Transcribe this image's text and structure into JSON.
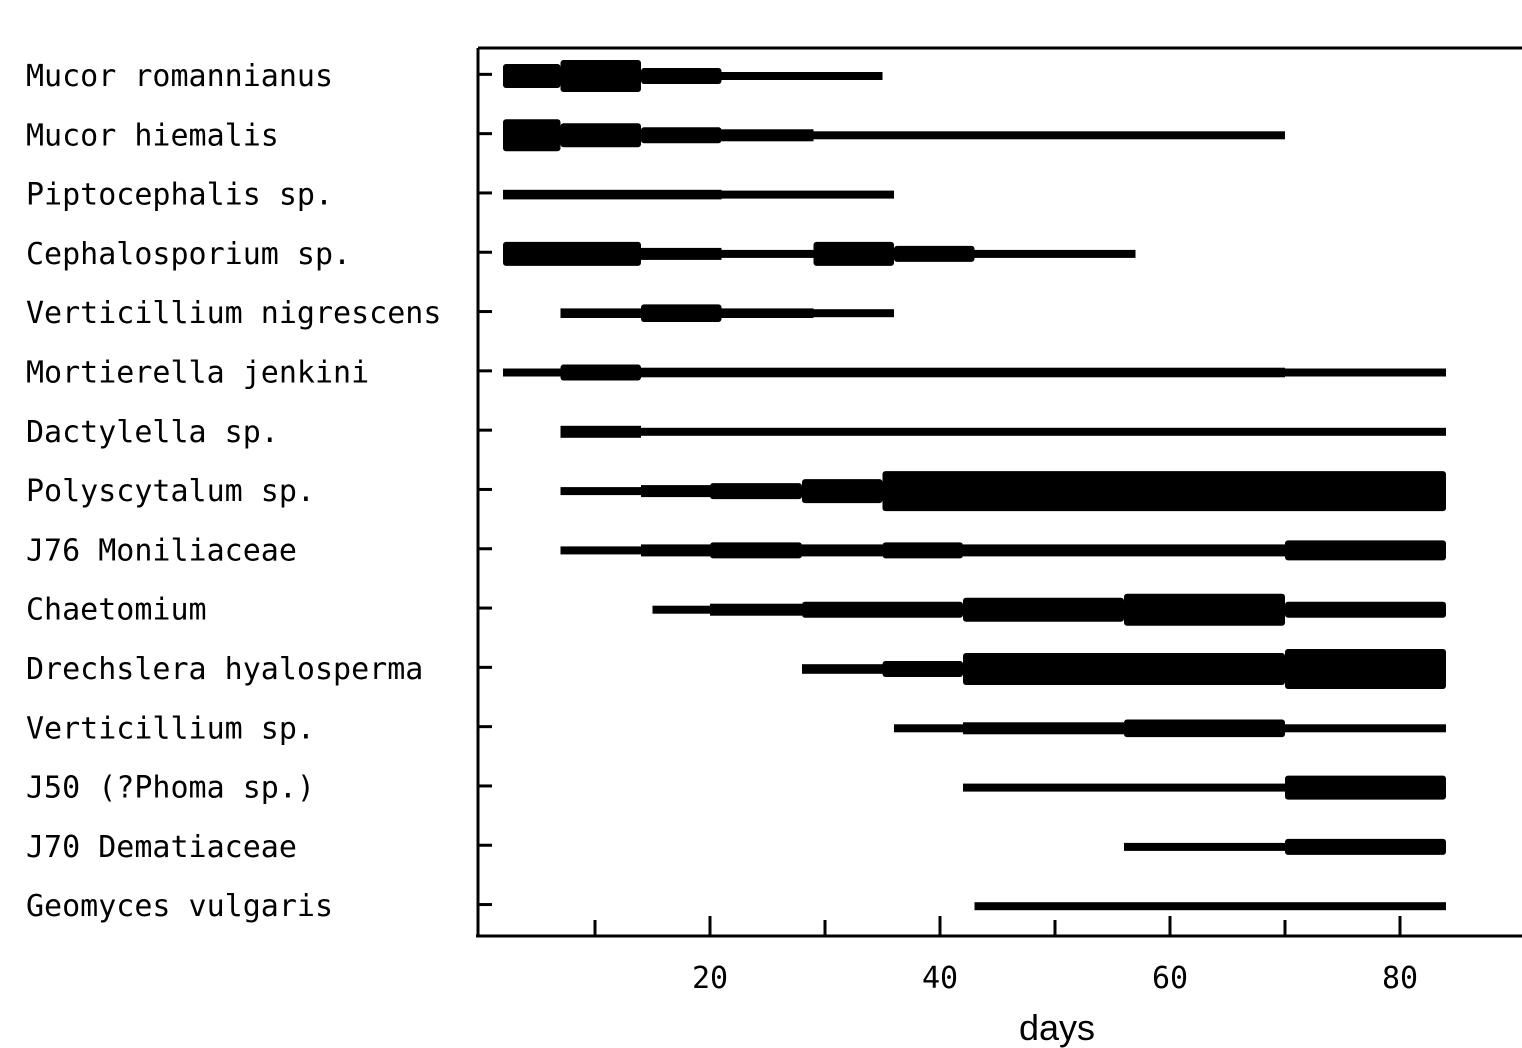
{
  "chart_data": {
    "type": "bar",
    "subtype": "kite-diagram",
    "title": "",
    "xlabel": "days",
    "ylabel": "",
    "xlim": [
      0,
      90
    ],
    "x_ticks": [
      20,
      40,
      60,
      80
    ],
    "x_minor_ticks": [
      10,
      30,
      50,
      70
    ],
    "width_scale": "relative abundance, 1 = thin line, 5 = thickest band",
    "species": [
      {
        "name": "Mucor romannianus",
        "segments": [
          [
            2,
            7,
            3
          ],
          [
            7,
            14,
            4
          ],
          [
            14,
            21,
            2
          ],
          [
            21,
            35,
            1
          ]
        ]
      },
      {
        "name": "Mucor hiemalis",
        "segments": [
          [
            2,
            7,
            4
          ],
          [
            7,
            14,
            3
          ],
          [
            14,
            21,
            2
          ],
          [
            21,
            29,
            1.5
          ],
          [
            29,
            70,
            1
          ]
        ]
      },
      {
        "name": "Piptocephalis sp.",
        "segments": [
          [
            2,
            21,
            1.2
          ],
          [
            21,
            36,
            1
          ]
        ]
      },
      {
        "name": "Cephalosporium sp.",
        "segments": [
          [
            2,
            14,
            3
          ],
          [
            14,
            21,
            1.5
          ],
          [
            21,
            29,
            1
          ],
          [
            29,
            36,
            3
          ],
          [
            36,
            43,
            2
          ],
          [
            43,
            57,
            1
          ]
        ]
      },
      {
        "name": "Verticillium nigrescens",
        "segments": [
          [
            7,
            14,
            1.2
          ],
          [
            14,
            21,
            2.2
          ],
          [
            21,
            29,
            1.2
          ],
          [
            29,
            36,
            1
          ]
        ]
      },
      {
        "name": "Mortierella jenkini",
        "segments": [
          [
            2,
            7,
            1
          ],
          [
            7,
            14,
            2
          ],
          [
            14,
            70,
            1.2
          ],
          [
            70,
            84,
            1
          ]
        ]
      },
      {
        "name": "Dactylella sp.",
        "segments": [
          [
            7,
            14,
            1.5
          ],
          [
            14,
            21,
            1
          ],
          [
            21,
            84,
            1
          ]
        ]
      },
      {
        "name": "Polyscytalum sp.",
        "segments": [
          [
            7,
            14,
            1
          ],
          [
            14,
            20,
            1.5
          ],
          [
            20,
            28,
            2
          ],
          [
            28,
            35,
            3
          ],
          [
            35,
            84,
            5
          ]
        ]
      },
      {
        "name": "J76 Moniliaceae",
        "segments": [
          [
            7,
            14,
            1
          ],
          [
            14,
            20,
            1.5
          ],
          [
            20,
            28,
            2
          ],
          [
            28,
            35,
            1.5
          ],
          [
            35,
            42,
            2
          ],
          [
            42,
            70,
            1.5
          ],
          [
            70,
            84,
            2.5
          ]
        ]
      },
      {
        "name": "Chaetomium",
        "segments": [
          [
            15,
            20,
            1
          ],
          [
            20,
            28,
            1.5
          ],
          [
            28,
            42,
            2
          ],
          [
            42,
            56,
            3
          ],
          [
            56,
            70,
            4
          ],
          [
            70,
            84,
            2
          ]
        ]
      },
      {
        "name": "Drechslera hyalosperma",
        "segments": [
          [
            28,
            35,
            1.2
          ],
          [
            35,
            42,
            2
          ],
          [
            42,
            70,
            4
          ],
          [
            70,
            84,
            5
          ]
        ]
      },
      {
        "name": "Verticillium sp.",
        "segments": [
          [
            36,
            42,
            1
          ],
          [
            42,
            56,
            1.5
          ],
          [
            56,
            70,
            2.2
          ],
          [
            70,
            84,
            1
          ]
        ]
      },
      {
        "name": "J50 (?Phoma sp.)",
        "segments": [
          [
            42,
            70,
            1
          ],
          [
            70,
            84,
            3
          ]
        ]
      },
      {
        "name": "J70 Dematiaceae",
        "segments": [
          [
            56,
            70,
            1
          ],
          [
            70,
            84,
            2
          ]
        ]
      },
      {
        "name": "Geomyces vulgaris",
        "segments": [
          [
            43,
            84,
            1
          ]
        ]
      }
    ]
  }
}
